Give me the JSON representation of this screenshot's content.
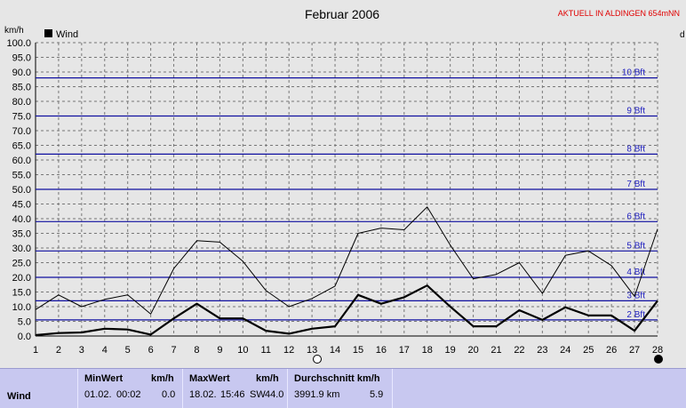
{
  "header": {
    "title": "Februar 2006",
    "station": "AKTUELL IN ALDINGEN 654mNN",
    "station_color": "#e00000",
    "y_unit": "km/h",
    "right_edge_label": "d"
  },
  "legend": {
    "label": "Wind"
  },
  "chart_data": {
    "type": "line",
    "title": "Februar 2006",
    "ylabel": "km/h",
    "ylim": [
      0,
      100
    ],
    "y_ticks": [
      "0.0",
      "5.0",
      "10.0",
      "15.0",
      "20.0",
      "25.0",
      "30.0",
      "35.0",
      "40.0",
      "45.0",
      "50.0",
      "55.0",
      "60.0",
      "65.0",
      "70.0",
      "75.0",
      "80.0",
      "85.0",
      "90.0",
      "95.0",
      "100.0"
    ],
    "categories": [
      "1",
      "2",
      "3",
      "4",
      "5",
      "6",
      "7",
      "8",
      "9",
      "10",
      "11",
      "12",
      "13",
      "14",
      "15",
      "16",
      "17",
      "18",
      "19",
      "20",
      "21",
      "22",
      "23",
      "24",
      "25",
      "26",
      "27",
      "28"
    ],
    "grid": true,
    "legend_position": "top-left",
    "beaufort_lines": [
      {
        "label": "2 Bft",
        "value": 5.5
      },
      {
        "label": "3 Bft",
        "value": 12
      },
      {
        "label": "4 Bft",
        "value": 20
      },
      {
        "label": "5 Bft",
        "value": 29
      },
      {
        "label": "6 Bft",
        "value": 39
      },
      {
        "label": "7 Bft",
        "value": 50
      },
      {
        "label": "8 Bft",
        "value": 62
      },
      {
        "label": "9 Bft",
        "value": 75
      },
      {
        "label": "10 Bft",
        "value": 88
      }
    ],
    "series": [
      {
        "name": "Wind",
        "values": [
          0.3,
          1.0,
          1.2,
          2.5,
          2.2,
          0.5,
          6.0,
          11.0,
          6.0,
          6.0,
          1.8,
          0.8,
          2.5,
          3.3,
          14.0,
          11.0,
          13.2,
          17.2,
          10.0,
          3.3,
          3.3,
          8.8,
          5.5,
          9.8,
          7.0,
          7.0,
          1.8,
          12.0
        ]
      },
      {
        "values": [
          9.0,
          14.0,
          10.0,
          12.5,
          14.0,
          7.5,
          23.0,
          32.5,
          32.0,
          25.5,
          15.5,
          10.0,
          12.8,
          17.0,
          35.0,
          36.8,
          36.2,
          44.0,
          31.0,
          19.5,
          21.0,
          25.0,
          14.5,
          27.5,
          29.0,
          24.0,
          13.5,
          36.5
        ]
      }
    ],
    "colors": {
      "background": "#e6e6e6",
      "grid": "#777777",
      "bft_line": "#1010a0",
      "bft_label": "#2020c0",
      "series": "#000000"
    }
  },
  "stats": {
    "row_label": "Wind",
    "min": {
      "header": "MinWert",
      "unit": "km/h",
      "date": "01.02.",
      "time": "00:02",
      "value": "0.0"
    },
    "max": {
      "header": "MaxWert",
      "unit": "km/h",
      "date": "18.02.",
      "time": "15:46",
      "dir": "SW",
      "value": "44.0"
    },
    "avg": {
      "header": "Durchschnitt km/h",
      "distance": "3991.9 km",
      "value": "5.9"
    }
  }
}
